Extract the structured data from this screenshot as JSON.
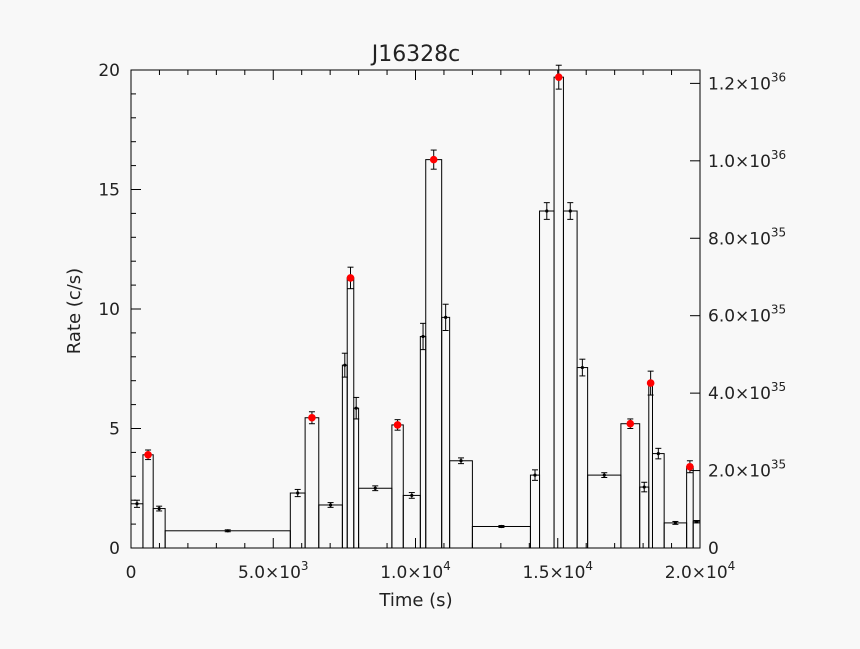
{
  "chart_data": {
    "type": "bar",
    "title": "J16328c",
    "xlabel": "Time (s)",
    "ylabel": "Rate (c/s)",
    "xlim": [
      0,
      20000
    ],
    "ylim": [
      0,
      20
    ],
    "x_ticks": [
      {
        "value": 0,
        "mant": "0",
        "exp": ""
      },
      {
        "value": 5000,
        "mant": "5.0×10",
        "exp": "3"
      },
      {
        "value": 10000,
        "mant": "1.0×10",
        "exp": "4"
      },
      {
        "value": 15000,
        "mant": "1.5×10",
        "exp": "4"
      },
      {
        "value": 20000,
        "mant": "2.0×10",
        "exp": "4"
      }
    ],
    "y_ticks": [
      0,
      5,
      10,
      15,
      20
    ],
    "y2_ticks": [
      {
        "rate": 0,
        "mant": "0",
        "exp": ""
      },
      {
        "rate": 3.24,
        "mant": "2.0×10",
        "exp": "35"
      },
      {
        "rate": 6.48,
        "mant": "4.0×10",
        "exp": "35"
      },
      {
        "rate": 9.72,
        "mant": "6.0×10",
        "exp": "35"
      },
      {
        "rate": 12.96,
        "mant": "8.0×10",
        "exp": "35"
      },
      {
        "rate": 16.2,
        "mant": "1.0×10",
        "exp": "36"
      },
      {
        "rate": 19.44,
        "mant": "1.2×10",
        "exp": "36"
      }
    ],
    "bins": [
      {
        "x0": 0,
        "x1": 420,
        "y": 1.85,
        "err": 0.15,
        "red": false
      },
      {
        "x0": 420,
        "x1": 780,
        "y": 3.9,
        "err": 0.2,
        "red": true
      },
      {
        "x0": 780,
        "x1": 1200,
        "y": 1.65,
        "err": 0.1,
        "red": false
      },
      {
        "x0": 1200,
        "x1": 5600,
        "y": 0.72,
        "err": 0.04,
        "red": false
      },
      {
        "x0": 5600,
        "x1": 6120,
        "y": 2.3,
        "err": 0.15,
        "red": false
      },
      {
        "x0": 6120,
        "x1": 6600,
        "y": 5.45,
        "err": 0.25,
        "red": true
      },
      {
        "x0": 6600,
        "x1": 7430,
        "y": 1.8,
        "err": 0.1,
        "red": false
      },
      {
        "x0": 7430,
        "x1": 7600,
        "y": 7.65,
        "err": 0.5,
        "red": false
      },
      {
        "x0": 7600,
        "x1": 7830,
        "y": 11.3,
        "err": 0.45,
        "red": true
      },
      {
        "x0": 7830,
        "x1": 8000,
        "y": 5.85,
        "err": 0.45,
        "red": false
      },
      {
        "x0": 8000,
        "x1": 9170,
        "y": 2.5,
        "err": 0.1,
        "red": false
      },
      {
        "x0": 9170,
        "x1": 9570,
        "y": 5.15,
        "err": 0.22,
        "red": true
      },
      {
        "x0": 9570,
        "x1": 10170,
        "y": 2.2,
        "err": 0.12,
        "red": false
      },
      {
        "x0": 10170,
        "x1": 10360,
        "y": 8.85,
        "err": 0.55,
        "red": false
      },
      {
        "x0": 10360,
        "x1": 10920,
        "y": 16.25,
        "err": 0.4,
        "red": true
      },
      {
        "x0": 10920,
        "x1": 11200,
        "y": 9.65,
        "err": 0.55,
        "red": false
      },
      {
        "x0": 11200,
        "x1": 12000,
        "y": 3.65,
        "err": 0.12,
        "red": false
      },
      {
        "x0": 12000,
        "x1": 14040,
        "y": 0.9,
        "err": 0.04,
        "red": false
      },
      {
        "x0": 14040,
        "x1": 14360,
        "y": 3.05,
        "err": 0.22,
        "red": false
      },
      {
        "x0": 14360,
        "x1": 14870,
        "y": 14.1,
        "err": 0.35,
        "red": false
      },
      {
        "x0": 14870,
        "x1": 15200,
        "y": 19.7,
        "err": 0.5,
        "red": true
      },
      {
        "x0": 15200,
        "x1": 15680,
        "y": 14.1,
        "err": 0.35,
        "red": false
      },
      {
        "x0": 15680,
        "x1": 16050,
        "y": 7.55,
        "err": 0.35,
        "red": false
      },
      {
        "x0": 16050,
        "x1": 17220,
        "y": 3.05,
        "err": 0.1,
        "red": false
      },
      {
        "x0": 17220,
        "x1": 17880,
        "y": 5.2,
        "err": 0.2,
        "red": true
      },
      {
        "x0": 17880,
        "x1": 18200,
        "y": 2.55,
        "err": 0.2,
        "red": false
      },
      {
        "x0": 18200,
        "x1": 18330,
        "y": 6.9,
        "err": 0.5,
        "red": true
      },
      {
        "x0": 18330,
        "x1": 18740,
        "y": 3.95,
        "err": 0.22,
        "red": false
      },
      {
        "x0": 18740,
        "x1": 19530,
        "y": 1.05,
        "err": 0.06,
        "red": false
      },
      {
        "x0": 19530,
        "x1": 19760,
        "y": 3.4,
        "err": 0.25,
        "red": true
      },
      {
        "x0": 19760,
        "x1": 20000,
        "y": 1.1,
        "err": 0.05,
        "red": false
      }
    ],
    "colors": {
      "line": "#000000",
      "marker": "#ff0000",
      "background": "#f8f8f8"
    }
  }
}
